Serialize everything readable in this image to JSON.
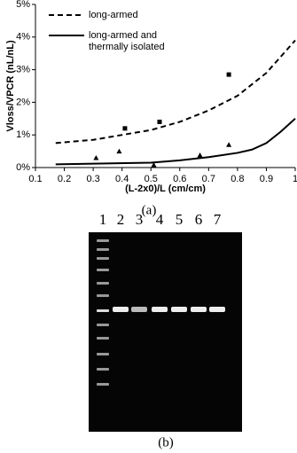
{
  "chart_data": {
    "type": "line",
    "xlabel": "(L-2x0)/L (cm/cm)",
    "ylabel": "Vloss/VPCR (nL/nL)",
    "xlim": [
      0.1,
      1
    ],
    "xticks": [
      0.1,
      0.2,
      0.3,
      0.4,
      0.5,
      0.6,
      0.7,
      0.8,
      0.9,
      1
    ],
    "ylim": [
      0,
      5
    ],
    "yticks": [
      {
        "value": 0,
        "label": "0%"
      },
      {
        "value": 1,
        "label": "1%"
      },
      {
        "value": 2,
        "label": "2%"
      },
      {
        "value": 3,
        "label": "3%"
      },
      {
        "value": 4,
        "label": "4%"
      },
      {
        "value": 5,
        "label": "5%"
      }
    ],
    "series": [
      {
        "name": "long-armed",
        "color": "#000000",
        "dash": true,
        "x": [
          0.17,
          0.3,
          0.4,
          0.5,
          0.6,
          0.7,
          0.8,
          0.9,
          1.0
        ],
        "values": [
          0.75,
          0.85,
          1.0,
          1.15,
          1.4,
          1.75,
          2.2,
          2.9,
          3.9
        ]
      },
      {
        "name": "long-armed and thermally isolated",
        "color": "#000000",
        "dash": false,
        "x": [
          0.17,
          0.3,
          0.5,
          0.6,
          0.7,
          0.8,
          0.85,
          0.9,
          0.95,
          1.0
        ],
        "values": [
          0.1,
          0.12,
          0.15,
          0.22,
          0.32,
          0.45,
          0.55,
          0.75,
          1.1,
          1.5
        ]
      }
    ],
    "points": [
      {
        "marker": "square",
        "x": [
          0.41,
          0.53,
          0.77
        ],
        "values": [
          1.2,
          1.4,
          2.85
        ]
      },
      {
        "marker": "triangle",
        "x": [
          0.31,
          0.39,
          0.51,
          0.67,
          0.77
        ],
        "values": [
          0.3,
          0.5,
          0.08,
          0.38,
          0.7
        ]
      }
    ]
  },
  "panel_labels": [
    "(a)",
    "(b)"
  ],
  "gel": {
    "lanes": [
      "1",
      "2",
      "3",
      "4",
      "5",
      "6",
      "7"
    ]
  }
}
